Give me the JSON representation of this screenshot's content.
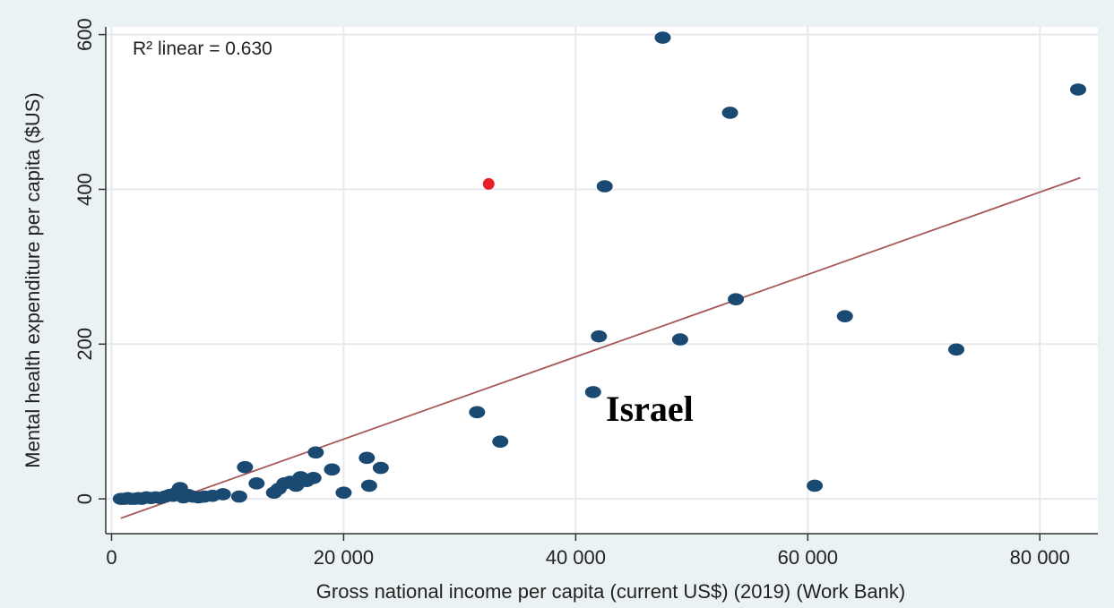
{
  "chart_data": {
    "type": "scatter",
    "xlabel": "Gross national income per capita (current US$) (2019) (Work Bank)",
    "ylabel": "Mental health expenditure per capita ($US)",
    "xlim": [
      -500,
      85000
    ],
    "ylim": [
      -45,
      610
    ],
    "x_ticks": [
      0,
      20000,
      40000,
      60000,
      80000
    ],
    "x_tick_labels": [
      "0",
      "20 000",
      "40 000",
      "60 000",
      "80 000"
    ],
    "y_ticks": [
      0,
      200,
      400,
      600
    ],
    "y_tick_labels": [
      "0",
      "200",
      "400",
      "600"
    ],
    "grid": true,
    "annotation": "R² linear = 0.630",
    "callout_label": "Israel",
    "fit_line": {
      "x": [
        800,
        83500
      ],
      "y": [
        -25,
        415
      ]
    },
    "points": [
      {
        "x": 800,
        "y": 0
      },
      {
        "x": 1100,
        "y": 0
      },
      {
        "x": 1400,
        "y": 1
      },
      {
        "x": 1700,
        "y": 0
      },
      {
        "x": 2000,
        "y": 0
      },
      {
        "x": 2300,
        "y": 1
      },
      {
        "x": 2600,
        "y": 0
      },
      {
        "x": 3000,
        "y": 2
      },
      {
        "x": 3400,
        "y": 1
      },
      {
        "x": 3800,
        "y": 2
      },
      {
        "x": 4200,
        "y": 1
      },
      {
        "x": 4600,
        "y": 3
      },
      {
        "x": 5000,
        "y": 5
      },
      {
        "x": 5300,
        "y": 4
      },
      {
        "x": 5600,
        "y": 8
      },
      {
        "x": 5900,
        "y": 14
      },
      {
        "x": 6200,
        "y": 2
      },
      {
        "x": 6600,
        "y": 5
      },
      {
        "x": 7000,
        "y": 3
      },
      {
        "x": 7500,
        "y": 2
      },
      {
        "x": 8000,
        "y": 3
      },
      {
        "x": 8700,
        "y": 4
      },
      {
        "x": 9600,
        "y": 6
      },
      {
        "x": 11000,
        "y": 3
      },
      {
        "x": 11500,
        "y": 41
      },
      {
        "x": 12500,
        "y": 20
      },
      {
        "x": 14000,
        "y": 8
      },
      {
        "x": 14400,
        "y": 13
      },
      {
        "x": 14900,
        "y": 20
      },
      {
        "x": 15400,
        "y": 22
      },
      {
        "x": 15900,
        "y": 17
      },
      {
        "x": 16300,
        "y": 28
      },
      {
        "x": 16800,
        "y": 23
      },
      {
        "x": 17400,
        "y": 27
      },
      {
        "x": 17600,
        "y": 60
      },
      {
        "x": 19000,
        "y": 38
      },
      {
        "x": 20000,
        "y": 8
      },
      {
        "x": 22000,
        "y": 53
      },
      {
        "x": 22200,
        "y": 17
      },
      {
        "x": 23200,
        "y": 40
      },
      {
        "x": 31500,
        "y": 112
      },
      {
        "x": 32500,
        "y": 407,
        "highlight": true
      },
      {
        "x": 33500,
        "y": 74
      },
      {
        "x": 41500,
        "y": 138
      },
      {
        "x": 42000,
        "y": 210
      },
      {
        "x": 42500,
        "y": 404
      },
      {
        "x": 47500,
        "y": 596
      },
      {
        "x": 49000,
        "y": 206
      },
      {
        "x": 53300,
        "y": 499
      },
      {
        "x": 53800,
        "y": 258
      },
      {
        "x": 60600,
        "y": 17
      },
      {
        "x": 63200,
        "y": 236
      },
      {
        "x": 72800,
        "y": 193
      },
      {
        "x": 83300,
        "y": 529
      }
    ],
    "colors": {
      "points": "#1a4a72",
      "highlight": "#e8202a",
      "fit_line": "#a85858",
      "grid": "#e6e9ee",
      "frame_bg": "#eaf2f3",
      "plot_bg": "#ffffff",
      "axis": "#333333"
    }
  }
}
